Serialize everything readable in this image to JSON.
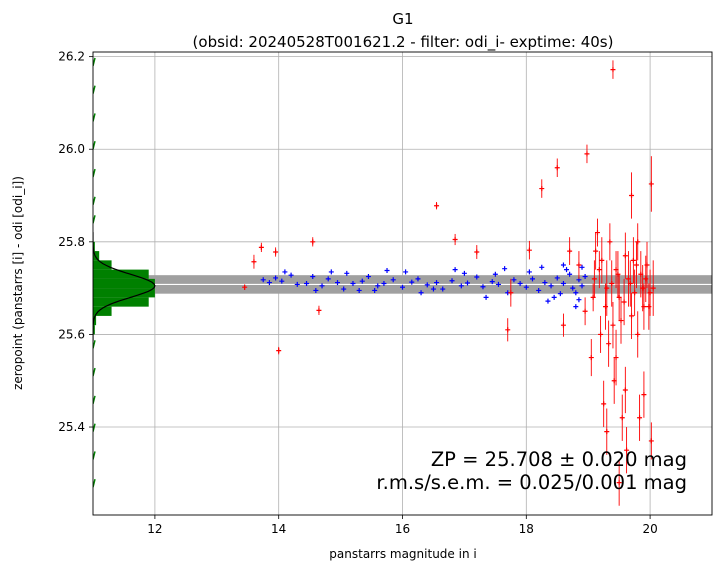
{
  "chart_data": {
    "type": "scatter",
    "title": "G1",
    "subtitle": "(obsid: 20240528T001621.2 - filter: odi_i- exptime: 40s)",
    "xlabel": "panstarrs magnitude in i",
    "ylabel": "zeropoint (panstarrs [i] - odi [odi_i])",
    "xlim": [
      11.0,
      21.0
    ],
    "ylim": [
      25.21,
      26.21
    ],
    "xticks": [
      "12",
      "14",
      "16",
      "18",
      "20"
    ],
    "yticks": [
      "25.4",
      "25.6",
      "25.8",
      "26.0",
      "26.2"
    ],
    "grid": true,
    "zp_line": 25.708,
    "zp_band": [
      25.688,
      25.728
    ],
    "annotation_line1": "ZP = 25.708 ± 0.020 mag",
    "annotation_line2": "r.m.s/s.e.m. = 0.025/0.001 mag",
    "colors": {
      "used": "#0000ff",
      "rejected": "#ff0000",
      "histogram": "#008000",
      "band": "#a0a0a0",
      "zp_line": "#ffffff",
      "fit_curve": "#000000"
    },
    "histogram": {
      "bin_edges": [
        25.6,
        25.62,
        25.64,
        25.66,
        25.68,
        25.7,
        25.72,
        25.74,
        25.76,
        25.78,
        25.8
      ],
      "counts_mag": [
        11.03,
        11.05,
        11.3,
        11.9,
        12.0,
        12.0,
        11.9,
        11.3,
        11.1,
        11.03
      ],
      "fit_peak_mag": 12.0,
      "fit_center": 25.705,
      "fit_sigma": 0.025
    },
    "series": [
      {
        "name": "",
        "role": "used",
        "points": [
          [
            13.75,
            25.718
          ],
          [
            13.85,
            25.712
          ],
          [
            13.95,
            25.722
          ],
          [
            14.05,
            25.715
          ],
          [
            14.2,
            25.728
          ],
          [
            14.3,
            25.708
          ],
          [
            14.45,
            25.71
          ],
          [
            14.55,
            25.725
          ],
          [
            14.7,
            25.705
          ],
          [
            14.8,
            25.72
          ],
          [
            14.95,
            25.712
          ],
          [
            15.05,
            25.698
          ],
          [
            15.2,
            25.71
          ],
          [
            15.35,
            25.715
          ],
          [
            15.45,
            25.725
          ],
          [
            15.6,
            25.705
          ],
          [
            15.7,
            25.71
          ],
          [
            15.85,
            25.718
          ],
          [
            16.0,
            25.702
          ],
          [
            16.15,
            25.713
          ],
          [
            16.25,
            25.72
          ],
          [
            16.4,
            25.707
          ],
          [
            16.55,
            25.712
          ],
          [
            16.65,
            25.698
          ],
          [
            16.8,
            25.716
          ],
          [
            16.95,
            25.705
          ],
          [
            17.05,
            25.711
          ],
          [
            17.2,
            25.724
          ],
          [
            17.3,
            25.703
          ],
          [
            17.45,
            25.714
          ],
          [
            17.55,
            25.708
          ],
          [
            17.7,
            25.69
          ],
          [
            17.8,
            25.718
          ],
          [
            17.9,
            25.71
          ],
          [
            18.0,
            25.702
          ],
          [
            18.1,
            25.72
          ],
          [
            18.2,
            25.695
          ],
          [
            18.3,
            25.712
          ],
          [
            18.4,
            25.705
          ],
          [
            18.5,
            25.722
          ],
          [
            18.55,
            25.688
          ],
          [
            18.6,
            25.71
          ],
          [
            18.7,
            25.73
          ],
          [
            18.75,
            25.7
          ],
          [
            18.8,
            25.69
          ],
          [
            18.85,
            25.718
          ],
          [
            18.9,
            25.705
          ],
          [
            18.95,
            25.725
          ],
          [
            14.1,
            25.735
          ],
          [
            14.6,
            25.695
          ],
          [
            15.1,
            25.732
          ],
          [
            15.55,
            25.695
          ],
          [
            16.05,
            25.735
          ],
          [
            16.5,
            25.698
          ],
          [
            17.0,
            25.732
          ],
          [
            17.5,
            25.73
          ],
          [
            18.05,
            25.735
          ],
          [
            18.45,
            25.68
          ],
          [
            18.65,
            25.74
          ],
          [
            18.85,
            25.675
          ],
          [
            15.75,
            25.738
          ],
          [
            16.85,
            25.74
          ],
          [
            17.65,
            25.742
          ],
          [
            18.25,
            25.745
          ],
          [
            18.35,
            25.672
          ],
          [
            18.6,
            25.75
          ],
          [
            18.8,
            25.66
          ],
          [
            18.9,
            25.745
          ],
          [
            17.35,
            25.68
          ],
          [
            16.3,
            25.69
          ],
          [
            15.3,
            25.695
          ],
          [
            14.85,
            25.735
          ]
        ]
      },
      {
        "name": "",
        "role": "rejected",
        "points": [
          [
            13.45,
            25.702,
            0.006
          ],
          [
            13.6,
            25.757,
            0.015
          ],
          [
            13.72,
            25.788,
            0.01
          ],
          [
            13.95,
            25.778,
            0.01
          ],
          [
            14.0,
            25.565,
            0.008
          ],
          [
            14.55,
            25.8,
            0.01
          ],
          [
            14.65,
            25.652,
            0.01
          ],
          [
            16.55,
            25.878,
            0.008
          ],
          [
            16.85,
            25.805,
            0.012
          ],
          [
            17.2,
            25.778,
            0.015
          ],
          [
            17.7,
            25.61,
            0.025
          ],
          [
            17.75,
            25.69,
            0.03
          ],
          [
            18.05,
            25.782,
            0.02
          ],
          [
            18.25,
            25.915,
            0.02
          ],
          [
            18.5,
            25.96,
            0.02
          ],
          [
            18.6,
            25.62,
            0.025
          ],
          [
            18.7,
            25.78,
            0.03
          ],
          [
            18.85,
            25.75,
            0.03
          ],
          [
            18.95,
            25.65,
            0.03
          ],
          [
            18.98,
            25.99,
            0.02
          ],
          [
            19.05,
            25.55,
            0.04
          ],
          [
            19.1,
            25.72,
            0.04
          ],
          [
            19.15,
            25.82,
            0.03
          ],
          [
            19.2,
            25.6,
            0.04
          ],
          [
            19.22,
            25.76,
            0.05
          ],
          [
            19.25,
            25.45,
            0.05
          ],
          [
            19.3,
            25.7,
            0.06
          ],
          [
            19.3,
            25.39,
            0.05
          ],
          [
            19.35,
            25.8,
            0.04
          ],
          [
            19.4,
            25.62,
            0.05
          ],
          [
            19.4,
            26.172,
            0.02
          ],
          [
            19.45,
            25.74,
            0.04
          ],
          [
            19.45,
            25.55,
            0.06
          ],
          [
            19.5,
            25.68,
            0.05
          ],
          [
            19.5,
            25.28,
            0.05
          ],
          [
            19.55,
            25.42,
            0.05
          ],
          [
            19.6,
            25.77,
            0.05
          ],
          [
            19.6,
            25.48,
            0.05
          ],
          [
            19.65,
            25.72,
            0.06
          ],
          [
            19.7,
            25.64,
            0.05
          ],
          [
            19.7,
            25.9,
            0.05
          ],
          [
            19.75,
            25.69,
            0.05
          ],
          [
            19.8,
            25.6,
            0.05
          ],
          [
            19.8,
            25.8,
            0.04
          ],
          [
            19.85,
            25.73,
            0.05
          ],
          [
            19.9,
            25.66,
            0.05
          ],
          [
            19.9,
            25.47,
            0.05
          ],
          [
            19.95,
            25.75,
            0.05
          ],
          [
            20.0,
            25.69,
            0.05
          ],
          [
            20.02,
            25.925,
            0.06
          ],
          [
            20.02,
            25.37,
            0.04
          ],
          [
            20.05,
            25.7,
            0.06
          ],
          [
            19.08,
            25.68,
            0.03
          ],
          [
            19.18,
            25.74,
            0.04
          ],
          [
            19.28,
            25.66,
            0.05
          ],
          [
            19.38,
            25.71,
            0.05
          ],
          [
            19.48,
            25.73,
            0.05
          ],
          [
            19.58,
            25.67,
            0.05
          ],
          [
            19.68,
            25.71,
            0.05
          ],
          [
            19.78,
            25.75,
            0.05
          ],
          [
            19.88,
            25.7,
            0.05
          ],
          [
            19.98,
            25.66,
            0.05
          ],
          [
            19.12,
            25.78,
            0.04
          ],
          [
            19.33,
            25.58,
            0.05
          ],
          [
            19.53,
            25.63,
            0.05
          ],
          [
            19.73,
            25.76,
            0.05
          ],
          [
            19.93,
            25.72,
            0.05
          ],
          [
            19.42,
            25.5,
            0.05
          ],
          [
            19.62,
            25.35,
            0.05
          ],
          [
            19.83,
            25.42,
            0.05
          ]
        ]
      }
    ]
  }
}
